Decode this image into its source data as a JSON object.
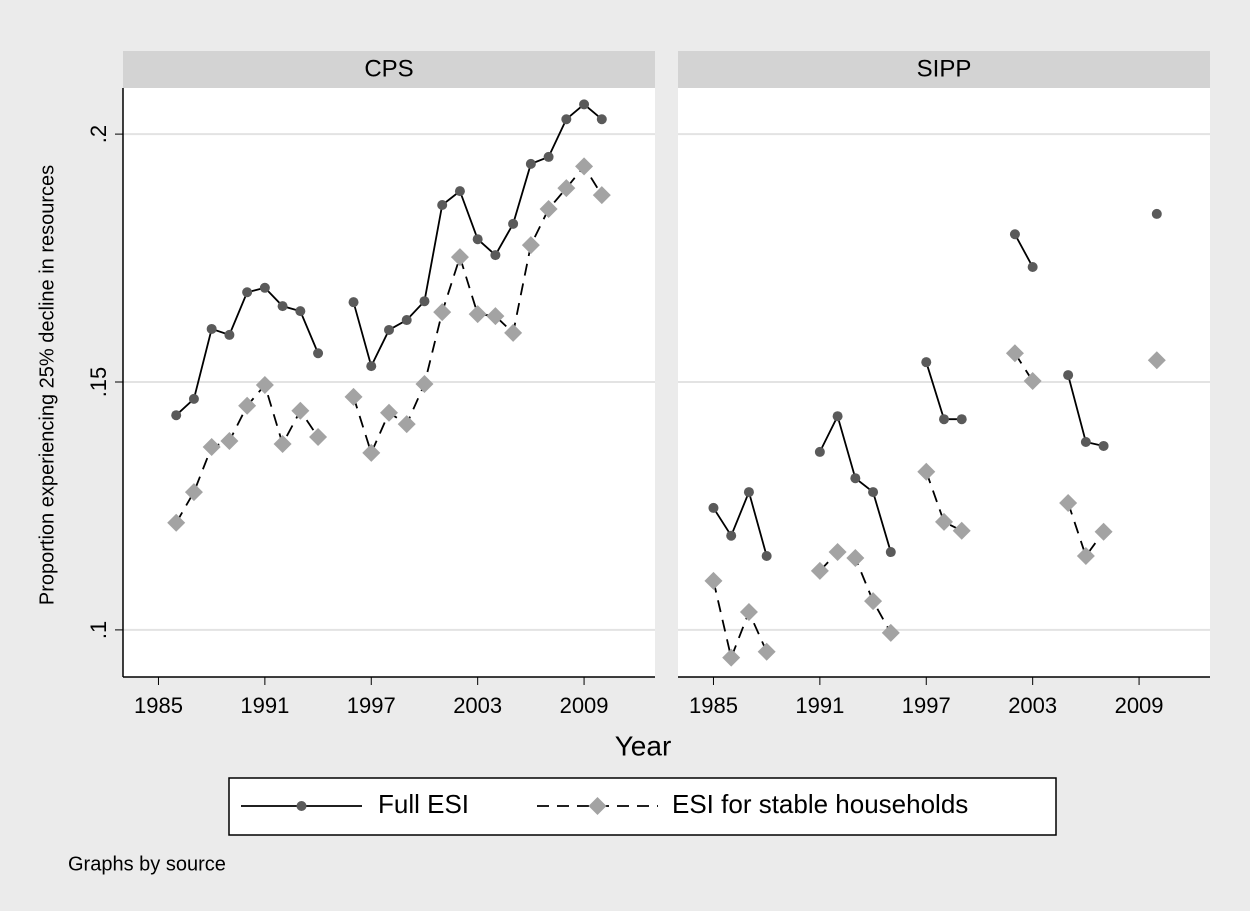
{
  "chart_data": {
    "type": "line",
    "ylabel": "Proportion experiencing 25% decline in resources",
    "xlabel": "Year",
    "note": "Graphs by source",
    "xlim": [
      1983,
      2013
    ],
    "xticks": [
      1985,
      1991,
      1997,
      2003,
      2009
    ],
    "ylim": [
      0.0905,
      0.2093
    ],
    "yticks": [
      {
        "value": 0.1,
        "label": ".1"
      },
      {
        "value": 0.15,
        "label": ".15"
      },
      {
        "value": 0.2,
        "label": ".2"
      }
    ],
    "grid": true,
    "series": [
      {
        "name": "Full ESI",
        "color": "#5a5a5a",
        "line_style": "solid",
        "marker": "circle"
      },
      {
        "name": "ESI for stable households",
        "color": "#a3a3a3",
        "line_style": "dashed",
        "marker": "diamond"
      }
    ],
    "panels": [
      {
        "title": "CPS",
        "x": [
          1986,
          1987,
          1988,
          1989,
          1990,
          1991,
          1992,
          1993,
          1994,
          1995,
          1996,
          1997,
          1998,
          1999,
          2000,
          2001,
          2002,
          2003,
          2004,
          2005,
          2006,
          2007,
          2008,
          2009,
          2010
        ],
        "values": [
          [
            0.1433,
            0.1466,
            0.1607,
            0.1595,
            0.1681,
            0.169,
            0.1653,
            0.1643,
            0.1558,
            null,
            0.1661,
            0.1532,
            0.1605,
            0.1625,
            0.1663,
            0.1857,
            0.1885,
            0.1788,
            0.1756,
            0.1819,
            0.194,
            0.1954,
            0.203,
            0.206,
            0.203
          ],
          [
            0.1216,
            0.1278,
            0.1369,
            0.1381,
            0.1452,
            0.1494,
            0.1375,
            0.1442,
            0.1389,
            null,
            0.147,
            0.1357,
            0.1438,
            0.1415,
            0.1496,
            0.1641,
            0.1752,
            0.1637,
            0.1633,
            0.1599,
            0.1776,
            0.1849,
            0.1891,
            0.1935,
            0.1877
          ]
        ]
      },
      {
        "title": "SIPP",
        "x": [
          1985,
          1986,
          1987,
          1988,
          1989,
          1990,
          1991,
          1992,
          1993,
          1994,
          1995,
          1996,
          1997,
          1998,
          1999,
          2000,
          2001,
          2002,
          2003,
          2004,
          2005,
          2006,
          2007,
          2008,
          2009,
          2010
        ],
        "values": [
          [
            0.1246,
            0.119,
            0.1278,
            0.1149,
            null,
            null,
            0.1359,
            0.1431,
            0.1306,
            0.1278,
            0.1157,
            null,
            0.154,
            0.1425,
            0.1425,
            null,
            null,
            0.1798,
            0.1732,
            null,
            0.1514,
            0.1379,
            0.1371,
            null,
            null,
            0.1839
          ],
          [
            0.1099,
            0.0944,
            0.1036,
            0.0956,
            null,
            null,
            0.1119,
            0.1157,
            0.1145,
            0.1058,
            0.0994,
            null,
            0.1319,
            0.1218,
            0.12,
            null,
            null,
            0.1558,
            0.1502,
            null,
            0.1256,
            0.1149,
            0.1198,
            null,
            null,
            0.1544
          ]
        ]
      }
    ]
  }
}
